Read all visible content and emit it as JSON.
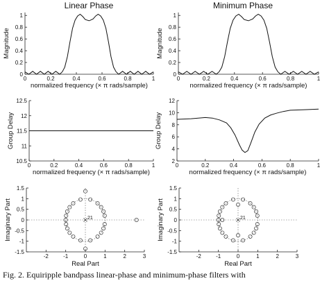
{
  "columns": [
    {
      "title": "Linear Phase"
    },
    {
      "title": "Minimum Phase"
    }
  ],
  "caption": "Fig. 2. Equiripple bandpass linear-phase and minimum-phase filters with",
  "chart_data": [
    {
      "type": "line",
      "title": "Linear Phase",
      "xlabel": "normalized frequency (× π rads/sample)",
      "ylabel": "Magnitude",
      "xlim": [
        0,
        1
      ],
      "ylim": [
        0,
        1.05
      ],
      "xticks": [
        "0",
        "0.2",
        "0.4",
        "0.6",
        "0.8",
        "1"
      ],
      "yticks": [
        "0",
        "0.2",
        "0.4",
        "0.6",
        "0.8",
        "1"
      ],
      "series": [
        {
          "x": [
            0,
            0.03,
            0.06,
            0.09,
            0.12,
            0.15,
            0.18,
            0.21,
            0.24,
            0.27,
            0.29,
            0.31,
            0.33,
            0.35,
            0.37,
            0.39,
            0.41,
            0.43,
            0.45,
            0.47,
            0.5,
            0.53,
            0.55,
            0.57,
            0.59,
            0.61,
            0.63,
            0.65,
            0.67,
            0.69,
            0.71,
            0.73,
            0.76,
            0.79,
            0.82,
            0.85,
            0.88,
            0.91,
            0.94,
            0.97,
            1.0
          ],
          "y": [
            0.04,
            0.0,
            0.05,
            0.0,
            0.05,
            0.0,
            0.05,
            0.0,
            0.05,
            0.0,
            0.04,
            0.12,
            0.3,
            0.55,
            0.78,
            0.92,
            0.99,
            1.02,
            0.98,
            0.93,
            0.91,
            0.94,
            0.99,
            1.02,
            0.99,
            0.92,
            0.78,
            0.55,
            0.3,
            0.12,
            0.04,
            0.0,
            0.05,
            0.0,
            0.05,
            0.0,
            0.05,
            0.0,
            0.05,
            0.0,
            0.04
          ]
        }
      ]
    },
    {
      "type": "line",
      "title": "Minimum Phase",
      "xlabel": "normalized frequency (× π rads/sample)",
      "ylabel": "Magnitude",
      "xlim": [
        0,
        1
      ],
      "ylim": [
        0,
        1.05
      ],
      "xticks": [
        "0",
        "0.2",
        "0.4",
        "0.6",
        "0.8",
        "1"
      ],
      "yticks": [
        "0",
        "0.2",
        "0.4",
        "0.6",
        "0.8",
        "1"
      ],
      "series": [
        {
          "x": [
            0,
            0.03,
            0.06,
            0.09,
            0.12,
            0.15,
            0.18,
            0.21,
            0.24,
            0.27,
            0.29,
            0.31,
            0.33,
            0.35,
            0.37,
            0.39,
            0.41,
            0.43,
            0.45,
            0.47,
            0.5,
            0.53,
            0.55,
            0.57,
            0.59,
            0.61,
            0.63,
            0.65,
            0.67,
            0.69,
            0.71,
            0.73,
            0.76,
            0.79,
            0.82,
            0.85,
            0.88,
            0.91,
            0.94,
            0.97,
            1.0
          ],
          "y": [
            0.04,
            0.0,
            0.05,
            0.0,
            0.05,
            0.0,
            0.05,
            0.0,
            0.05,
            0.0,
            0.04,
            0.12,
            0.3,
            0.55,
            0.78,
            0.92,
            0.99,
            1.02,
            0.98,
            0.93,
            0.91,
            0.94,
            0.99,
            1.02,
            0.99,
            0.92,
            0.78,
            0.55,
            0.3,
            0.12,
            0.04,
            0.0,
            0.05,
            0.0,
            0.05,
            0.0,
            0.05,
            0.0,
            0.05,
            0.0,
            0.04
          ]
        }
      ]
    },
    {
      "type": "line",
      "title": "",
      "xlabel": "normalized frequency (× π rads/sample)",
      "ylabel": "Group Delay",
      "xlim": [
        0,
        1
      ],
      "ylim": [
        10.5,
        12.5
      ],
      "xticks": [
        "0",
        "0.2",
        "0.4",
        "0.6",
        "0.8",
        "1"
      ],
      "yticks": [
        "10.5",
        "11",
        "11.5",
        "12",
        "12.5"
      ],
      "series": [
        {
          "x": [
            0,
            1
          ],
          "y": [
            11.5,
            11.5
          ]
        }
      ]
    },
    {
      "type": "line",
      "title": "",
      "xlabel": "normalized frequency (× π rads/sample)",
      "ylabel": "Group Delay",
      "xlim": [
        0,
        1
      ],
      "ylim": [
        2,
        12
      ],
      "xticks": [
        "0",
        "0.2",
        "0.4",
        "0.6",
        "0.8",
        "1"
      ],
      "yticks": [
        "2",
        "4",
        "6",
        "8",
        "10",
        "12"
      ],
      "series": [
        {
          "x": [
            0,
            0.1,
            0.2,
            0.25,
            0.3,
            0.35,
            0.38,
            0.41,
            0.44,
            0.46,
            0.48,
            0.5,
            0.52,
            0.55,
            0.58,
            0.62,
            0.66,
            0.7,
            0.75,
            0.8,
            0.9,
            1.0
          ],
          "y": [
            8.9,
            9.0,
            9.2,
            9.1,
            8.8,
            8.3,
            7.5,
            6.3,
            4.7,
            3.8,
            3.4,
            3.7,
            4.9,
            6.8,
            8.1,
            9.1,
            9.6,
            9.9,
            10.2,
            10.4,
            10.5,
            10.6
          ]
        }
      ]
    },
    {
      "type": "scatter",
      "title": "",
      "xlabel": "Real Part",
      "ylabel": "Imaginary Part",
      "xlim": [
        -3,
        3
      ],
      "ylim": [
        -1.5,
        1.5
      ],
      "xticks": [
        "-2",
        "-1",
        "0",
        "1",
        "2",
        "3"
      ],
      "yticks": [
        "-1.5",
        "-1",
        "-0.5",
        "0",
        "0.5",
        "1",
        "1.5"
      ],
      "annotations": [
        "21"
      ],
      "zeros": [
        [
          0.98,
          0.2
        ],
        [
          0.92,
          0.4
        ],
        [
          0.8,
          0.6
        ],
        [
          0.62,
          0.78
        ],
        [
          0.25,
          0.96
        ],
        [
          -0.25,
          0.96
        ],
        [
          -0.62,
          0.78
        ],
        [
          -0.8,
          0.6
        ],
        [
          -0.92,
          0.4
        ],
        [
          -0.98,
          0.2
        ],
        [
          -1.0,
          0.0
        ],
        [
          0.98,
          -0.2
        ],
        [
          0.92,
          -0.4
        ],
        [
          0.8,
          -0.6
        ],
        [
          0.62,
          -0.78
        ],
        [
          0.25,
          -0.96
        ],
        [
          -0.25,
          -0.96
        ],
        [
          -0.62,
          -0.78
        ],
        [
          -0.8,
          -0.6
        ],
        [
          -0.92,
          -0.4
        ],
        [
          -0.98,
          -0.2
        ],
        [
          0.0,
          1.35
        ],
        [
          0.0,
          -1.35
        ],
        [
          2.6,
          0.0
        ]
      ],
      "poles": [
        [
          0,
          0
        ]
      ]
    },
    {
      "type": "scatter",
      "title": "",
      "xlabel": "Real Part",
      "ylabel": "Imaginary Part",
      "xlim": [
        -3,
        3
      ],
      "ylim": [
        -1.5,
        1.5
      ],
      "xticks": [
        "-2",
        "-1",
        "0",
        "1",
        "2",
        "3"
      ],
      "yticks": [
        "-1.5",
        "-1",
        "-0.5",
        "0",
        "0.5",
        "1",
        "1.5"
      ],
      "annotations": [
        "21"
      ],
      "zeros": [
        [
          0.98,
          0.2
        ],
        [
          0.92,
          0.4
        ],
        [
          0.8,
          0.6
        ],
        [
          0.62,
          0.78
        ],
        [
          0.25,
          0.96
        ],
        [
          -0.25,
          0.96
        ],
        [
          -0.62,
          0.78
        ],
        [
          -0.8,
          0.6
        ],
        [
          -0.92,
          0.4
        ],
        [
          -0.98,
          0.2
        ],
        [
          -1.0,
          0.0
        ],
        [
          0.98,
          -0.2
        ],
        [
          0.92,
          -0.4
        ],
        [
          0.8,
          -0.6
        ],
        [
          0.62,
          -0.78
        ],
        [
          0.25,
          -0.96
        ],
        [
          -0.25,
          -0.96
        ],
        [
          -0.62,
          -0.78
        ],
        [
          -0.8,
          -0.6
        ],
        [
          -0.92,
          -0.4
        ],
        [
          -0.98,
          -0.2
        ],
        [
          0.0,
          0.72
        ],
        [
          0.0,
          -0.72
        ],
        [
          -0.8,
          0.0
        ]
      ],
      "poles": [
        [
          0,
          0
        ]
      ]
    }
  ]
}
